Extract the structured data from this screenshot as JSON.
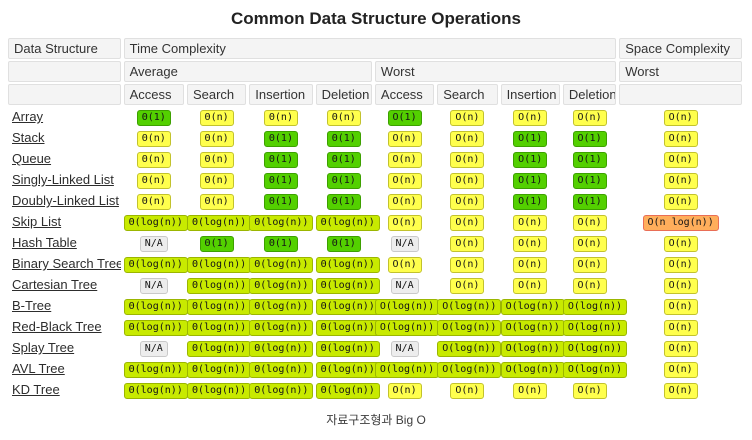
{
  "title": "Common Data Structure Operations",
  "caption": "자료구조형과 Big O",
  "colors": {
    "green": {
      "bg": "#53d000",
      "border": "#3da000"
    },
    "yellow": {
      "bg": "#ffff4d",
      "border": "#c2c22d"
    },
    "yellowgreen": {
      "bg": "#c8ea00",
      "border": "#9bb600"
    },
    "orange": {
      "bg": "#ffae5b",
      "border": "#e96e56"
    },
    "gray": {
      "bg": "#ededed",
      "border": "#c9c9c9"
    }
  },
  "table": {
    "header": {
      "data_structure": "Data Structure",
      "time_complexity": "Time Complexity",
      "space_complexity": "Space Complexity",
      "average": "Average",
      "worst": "Worst",
      "space_worst": "Worst",
      "operations": [
        "Access",
        "Search",
        "Insertion",
        "Deletion"
      ]
    },
    "rows": [
      {
        "name": "Array",
        "average": [
          {
            "t": "Θ(1)",
            "c": "green"
          },
          {
            "t": "Θ(n)",
            "c": "yellow"
          },
          {
            "t": "Θ(n)",
            "c": "yellow"
          },
          {
            "t": "Θ(n)",
            "c": "yellow"
          }
        ],
        "worst": [
          {
            "t": "O(1)",
            "c": "green"
          },
          {
            "t": "O(n)",
            "c": "yellow"
          },
          {
            "t": "O(n)",
            "c": "yellow"
          },
          {
            "t": "O(n)",
            "c": "yellow"
          }
        ],
        "space": {
          "t": "O(n)",
          "c": "yellow"
        }
      },
      {
        "name": "Stack",
        "average": [
          {
            "t": "Θ(n)",
            "c": "yellow"
          },
          {
            "t": "Θ(n)",
            "c": "yellow"
          },
          {
            "t": "Θ(1)",
            "c": "green"
          },
          {
            "t": "Θ(1)",
            "c": "green"
          }
        ],
        "worst": [
          {
            "t": "O(n)",
            "c": "yellow"
          },
          {
            "t": "O(n)",
            "c": "yellow"
          },
          {
            "t": "O(1)",
            "c": "green"
          },
          {
            "t": "O(1)",
            "c": "green"
          }
        ],
        "space": {
          "t": "O(n)",
          "c": "yellow"
        }
      },
      {
        "name": "Queue",
        "average": [
          {
            "t": "Θ(n)",
            "c": "yellow"
          },
          {
            "t": "Θ(n)",
            "c": "yellow"
          },
          {
            "t": "Θ(1)",
            "c": "green"
          },
          {
            "t": "Θ(1)",
            "c": "green"
          }
        ],
        "worst": [
          {
            "t": "O(n)",
            "c": "yellow"
          },
          {
            "t": "O(n)",
            "c": "yellow"
          },
          {
            "t": "O(1)",
            "c": "green"
          },
          {
            "t": "O(1)",
            "c": "green"
          }
        ],
        "space": {
          "t": "O(n)",
          "c": "yellow"
        }
      },
      {
        "name": "Singly-Linked List",
        "average": [
          {
            "t": "Θ(n)",
            "c": "yellow"
          },
          {
            "t": "Θ(n)",
            "c": "yellow"
          },
          {
            "t": "Θ(1)",
            "c": "green"
          },
          {
            "t": "Θ(1)",
            "c": "green"
          }
        ],
        "worst": [
          {
            "t": "O(n)",
            "c": "yellow"
          },
          {
            "t": "O(n)",
            "c": "yellow"
          },
          {
            "t": "O(1)",
            "c": "green"
          },
          {
            "t": "O(1)",
            "c": "green"
          }
        ],
        "space": {
          "t": "O(n)",
          "c": "yellow"
        }
      },
      {
        "name": "Doubly-Linked List",
        "average": [
          {
            "t": "Θ(n)",
            "c": "yellow"
          },
          {
            "t": "Θ(n)",
            "c": "yellow"
          },
          {
            "t": "Θ(1)",
            "c": "green"
          },
          {
            "t": "Θ(1)",
            "c": "green"
          }
        ],
        "worst": [
          {
            "t": "O(n)",
            "c": "yellow"
          },
          {
            "t": "O(n)",
            "c": "yellow"
          },
          {
            "t": "O(1)",
            "c": "green"
          },
          {
            "t": "O(1)",
            "c": "green"
          }
        ],
        "space": {
          "t": "O(n)",
          "c": "yellow"
        }
      },
      {
        "name": "Skip List",
        "average": [
          {
            "t": "Θ(log(n))",
            "c": "yellowgreen"
          },
          {
            "t": "Θ(log(n))",
            "c": "yellowgreen"
          },
          {
            "t": "Θ(log(n))",
            "c": "yellowgreen"
          },
          {
            "t": "Θ(log(n))",
            "c": "yellowgreen"
          }
        ],
        "worst": [
          {
            "t": "O(n)",
            "c": "yellow"
          },
          {
            "t": "O(n)",
            "c": "yellow"
          },
          {
            "t": "O(n)",
            "c": "yellow"
          },
          {
            "t": "O(n)",
            "c": "yellow"
          }
        ],
        "space": {
          "t": "O(n log(n))",
          "c": "orange"
        }
      },
      {
        "name": "Hash Table",
        "average": [
          {
            "t": "N/A",
            "c": "gray"
          },
          {
            "t": "Θ(1)",
            "c": "green"
          },
          {
            "t": "Θ(1)",
            "c": "green"
          },
          {
            "t": "Θ(1)",
            "c": "green"
          }
        ],
        "worst": [
          {
            "t": "N/A",
            "c": "gray"
          },
          {
            "t": "O(n)",
            "c": "yellow"
          },
          {
            "t": "O(n)",
            "c": "yellow"
          },
          {
            "t": "O(n)",
            "c": "yellow"
          }
        ],
        "space": {
          "t": "O(n)",
          "c": "yellow"
        }
      },
      {
        "name": "Binary Search Tree",
        "average": [
          {
            "t": "Θ(log(n))",
            "c": "yellowgreen"
          },
          {
            "t": "Θ(log(n))",
            "c": "yellowgreen"
          },
          {
            "t": "Θ(log(n))",
            "c": "yellowgreen"
          },
          {
            "t": "Θ(log(n))",
            "c": "yellowgreen"
          }
        ],
        "worst": [
          {
            "t": "O(n)",
            "c": "yellow"
          },
          {
            "t": "O(n)",
            "c": "yellow"
          },
          {
            "t": "O(n)",
            "c": "yellow"
          },
          {
            "t": "O(n)",
            "c": "yellow"
          }
        ],
        "space": {
          "t": "O(n)",
          "c": "yellow"
        }
      },
      {
        "name": "Cartesian Tree",
        "average": [
          {
            "t": "N/A",
            "c": "gray"
          },
          {
            "t": "Θ(log(n))",
            "c": "yellowgreen"
          },
          {
            "t": "Θ(log(n))",
            "c": "yellowgreen"
          },
          {
            "t": "Θ(log(n))",
            "c": "yellowgreen"
          }
        ],
        "worst": [
          {
            "t": "N/A",
            "c": "gray"
          },
          {
            "t": "O(n)",
            "c": "yellow"
          },
          {
            "t": "O(n)",
            "c": "yellow"
          },
          {
            "t": "O(n)",
            "c": "yellow"
          }
        ],
        "space": {
          "t": "O(n)",
          "c": "yellow"
        }
      },
      {
        "name": "B-Tree",
        "average": [
          {
            "t": "Θ(log(n))",
            "c": "yellowgreen"
          },
          {
            "t": "Θ(log(n))",
            "c": "yellowgreen"
          },
          {
            "t": "Θ(log(n))",
            "c": "yellowgreen"
          },
          {
            "t": "Θ(log(n))",
            "c": "yellowgreen"
          }
        ],
        "worst": [
          {
            "t": "O(log(n))",
            "c": "yellowgreen"
          },
          {
            "t": "O(log(n))",
            "c": "yellowgreen"
          },
          {
            "t": "O(log(n))",
            "c": "yellowgreen"
          },
          {
            "t": "O(log(n))",
            "c": "yellowgreen"
          }
        ],
        "space": {
          "t": "O(n)",
          "c": "yellow"
        }
      },
      {
        "name": "Red-Black Tree",
        "average": [
          {
            "t": "Θ(log(n))",
            "c": "yellowgreen"
          },
          {
            "t": "Θ(log(n))",
            "c": "yellowgreen"
          },
          {
            "t": "Θ(log(n))",
            "c": "yellowgreen"
          },
          {
            "t": "Θ(log(n))",
            "c": "yellowgreen"
          }
        ],
        "worst": [
          {
            "t": "O(log(n))",
            "c": "yellowgreen"
          },
          {
            "t": "O(log(n))",
            "c": "yellowgreen"
          },
          {
            "t": "O(log(n))",
            "c": "yellowgreen"
          },
          {
            "t": "O(log(n))",
            "c": "yellowgreen"
          }
        ],
        "space": {
          "t": "O(n)",
          "c": "yellow"
        }
      },
      {
        "name": "Splay Tree",
        "average": [
          {
            "t": "N/A",
            "c": "gray"
          },
          {
            "t": "Θ(log(n))",
            "c": "yellowgreen"
          },
          {
            "t": "Θ(log(n))",
            "c": "yellowgreen"
          },
          {
            "t": "Θ(log(n))",
            "c": "yellowgreen"
          }
        ],
        "worst": [
          {
            "t": "N/A",
            "c": "gray"
          },
          {
            "t": "O(log(n))",
            "c": "yellowgreen"
          },
          {
            "t": "O(log(n))",
            "c": "yellowgreen"
          },
          {
            "t": "O(log(n))",
            "c": "yellowgreen"
          }
        ],
        "space": {
          "t": "O(n)",
          "c": "yellow"
        }
      },
      {
        "name": "AVL Tree",
        "average": [
          {
            "t": "Θ(log(n))",
            "c": "yellowgreen"
          },
          {
            "t": "Θ(log(n))",
            "c": "yellowgreen"
          },
          {
            "t": "Θ(log(n))",
            "c": "yellowgreen"
          },
          {
            "t": "Θ(log(n))",
            "c": "yellowgreen"
          }
        ],
        "worst": [
          {
            "t": "O(log(n))",
            "c": "yellowgreen"
          },
          {
            "t": "O(log(n))",
            "c": "yellowgreen"
          },
          {
            "t": "O(log(n))",
            "c": "yellowgreen"
          },
          {
            "t": "O(log(n))",
            "c": "yellowgreen"
          }
        ],
        "space": {
          "t": "O(n)",
          "c": "yellow"
        }
      },
      {
        "name": "KD Tree",
        "average": [
          {
            "t": "Θ(log(n))",
            "c": "yellowgreen"
          },
          {
            "t": "Θ(log(n))",
            "c": "yellowgreen"
          },
          {
            "t": "Θ(log(n))",
            "c": "yellowgreen"
          },
          {
            "t": "Θ(log(n))",
            "c": "yellowgreen"
          }
        ],
        "worst": [
          {
            "t": "O(n)",
            "c": "yellow"
          },
          {
            "t": "O(n)",
            "c": "yellow"
          },
          {
            "t": "O(n)",
            "c": "yellow"
          },
          {
            "t": "O(n)",
            "c": "yellow"
          }
        ],
        "space": {
          "t": "O(n)",
          "c": "yellow"
        }
      }
    ]
  }
}
